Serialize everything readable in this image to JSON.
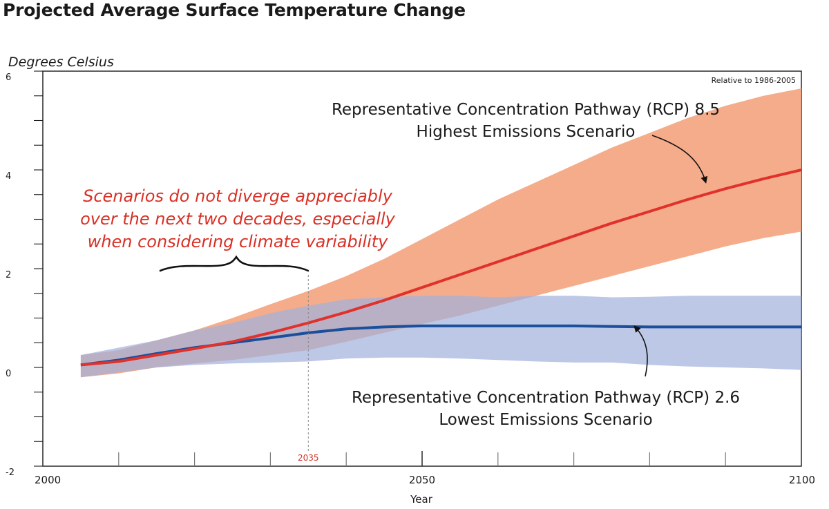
{
  "chart_data": {
    "type": "area",
    "title": "Projected Average Surface Temperature Change",
    "ylabel": "Degrees Celsius",
    "xlabel": "Year",
    "note": "Relative to 1986-2005",
    "xlim": [
      2000,
      2100
    ],
    "ylim": [
      -2,
      6
    ],
    "x_ticks": [
      2000,
      2050,
      2100
    ],
    "y_ticks": [
      -2,
      0,
      2,
      4,
      6
    ],
    "y_minor_step": 0.5,
    "x_minor_step": 10,
    "series": [
      {
        "name": "RCP 8.5",
        "label_line1": "Representative Concentration Pathway (RCP) 8.5",
        "label_line2": "Highest Emissions Scenario",
        "color": "#e0312b",
        "band_color": "#f4a07a",
        "x": [
          2005,
          2010,
          2015,
          2020,
          2025,
          2030,
          2035,
          2040,
          2045,
          2050,
          2055,
          2060,
          2065,
          2070,
          2075,
          2080,
          2085,
          2090,
          2095,
          2100
        ],
        "mean": [
          0.05,
          0.12,
          0.25,
          0.38,
          0.52,
          0.7,
          0.9,
          1.12,
          1.36,
          1.62,
          1.88,
          2.14,
          2.4,
          2.66,
          2.92,
          3.16,
          3.4,
          3.62,
          3.82,
          4.0
        ],
        "upper": [
          0.25,
          0.35,
          0.55,
          0.75,
          1.0,
          1.28,
          1.55,
          1.85,
          2.2,
          2.6,
          3.0,
          3.4,
          3.75,
          4.1,
          4.45,
          4.75,
          5.05,
          5.3,
          5.5,
          5.65
        ],
        "lower": [
          -0.2,
          -0.12,
          0.0,
          0.08,
          0.15,
          0.25,
          0.35,
          0.52,
          0.7,
          0.88,
          1.05,
          1.25,
          1.45,
          1.65,
          1.85,
          2.05,
          2.25,
          2.45,
          2.62,
          2.75
        ]
      },
      {
        "name": "RCP 2.6",
        "label_line1": "Representative Concentration Pathway (RCP) 2.6",
        "label_line2": "Lowest Emissions Scenario",
        "color": "#1b4f9b",
        "band_color": "#a3b1dd",
        "x": [
          2005,
          2010,
          2015,
          2020,
          2025,
          2030,
          2035,
          2040,
          2045,
          2050,
          2055,
          2060,
          2065,
          2070,
          2075,
          2080,
          2085,
          2090,
          2095,
          2100
        ],
        "mean": [
          0.05,
          0.15,
          0.28,
          0.4,
          0.5,
          0.6,
          0.7,
          0.78,
          0.82,
          0.84,
          0.84,
          0.84,
          0.84,
          0.84,
          0.83,
          0.82,
          0.82,
          0.82,
          0.82,
          0.82
        ],
        "upper": [
          0.25,
          0.4,
          0.55,
          0.75,
          0.9,
          1.1,
          1.25,
          1.38,
          1.42,
          1.45,
          1.45,
          1.42,
          1.45,
          1.45,
          1.42,
          1.43,
          1.45,
          1.45,
          1.45,
          1.45
        ],
        "lower": [
          -0.2,
          -0.1,
          0.0,
          0.05,
          0.08,
          0.1,
          0.12,
          0.18,
          0.2,
          0.2,
          0.18,
          0.15,
          0.12,
          0.1,
          0.1,
          0.05,
          0.02,
          0.0,
          -0.02,
          -0.05
        ]
      }
    ],
    "annotations": {
      "callout_lines": [
        "Scenarios do not diverge appreciably",
        "over the next two decades, especially",
        "when considering climate variability"
      ],
      "callout_color": "#d93025",
      "marker_year": 2035,
      "marker_label": "2035"
    }
  }
}
